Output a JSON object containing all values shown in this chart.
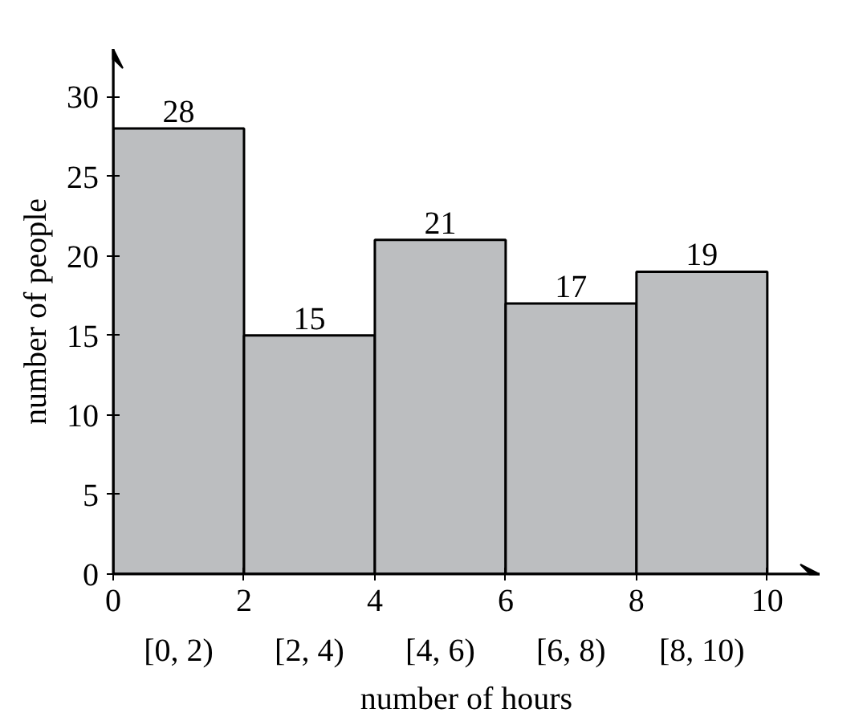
{
  "chart_data": {
    "type": "histogram",
    "xlabel": "number of hours",
    "ylabel": "number of people",
    "bins": [
      0,
      2,
      4,
      6,
      8,
      10
    ],
    "values": [
      28,
      15,
      21,
      17,
      19
    ],
    "categories": [
      "[0, 2)",
      "[2, 4)",
      "[4, 6)",
      "[6, 8)",
      "[8, 10)"
    ],
    "color": "#bcbec0",
    "xlim": [
      0,
      10.8
    ],
    "ylim": [
      0,
      33
    ],
    "xticks": [
      0,
      2,
      4,
      6,
      8,
      10
    ],
    "yticks": [
      0,
      5,
      10,
      15,
      20,
      25,
      30
    ],
    "data_labels": true,
    "grid": false
  }
}
